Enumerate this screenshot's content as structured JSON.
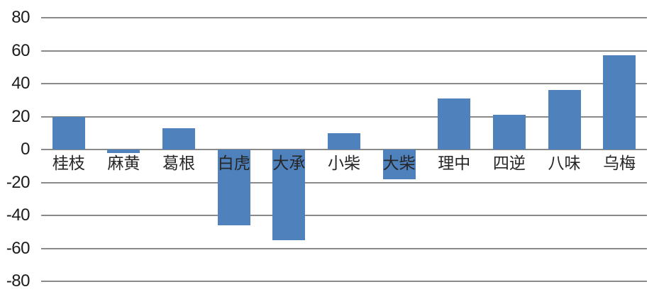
{
  "chart_data": {
    "type": "bar",
    "categories": [
      "桂枝",
      "麻黄",
      "葛根",
      "白虎",
      "大承",
      "小柴",
      "大柴",
      "理中",
      "四逆",
      "八味",
      "乌梅"
    ],
    "values": [
      20,
      -2,
      13,
      -46,
      -55,
      10,
      -18,
      31,
      21,
      36,
      57
    ],
    "series": [
      {
        "name": "",
        "values": [
          20,
          -2,
          13,
          -46,
          -55,
          10,
          -18,
          31,
          21,
          36,
          57
        ]
      }
    ],
    "title": "",
    "xlabel": "",
    "ylabel": "",
    "ylim": [
      -80,
      80
    ],
    "yticks": [
      80,
      60,
      40,
      20,
      0,
      -20,
      -40,
      -60,
      -80
    ],
    "grid": true,
    "legend_position": "none",
    "bar_color": "#4F81BD",
    "gridline_color": "#8A8A8A",
    "y_tick_label_color": "#1C1C1C",
    "x_tick_label_color": "#262626"
  }
}
